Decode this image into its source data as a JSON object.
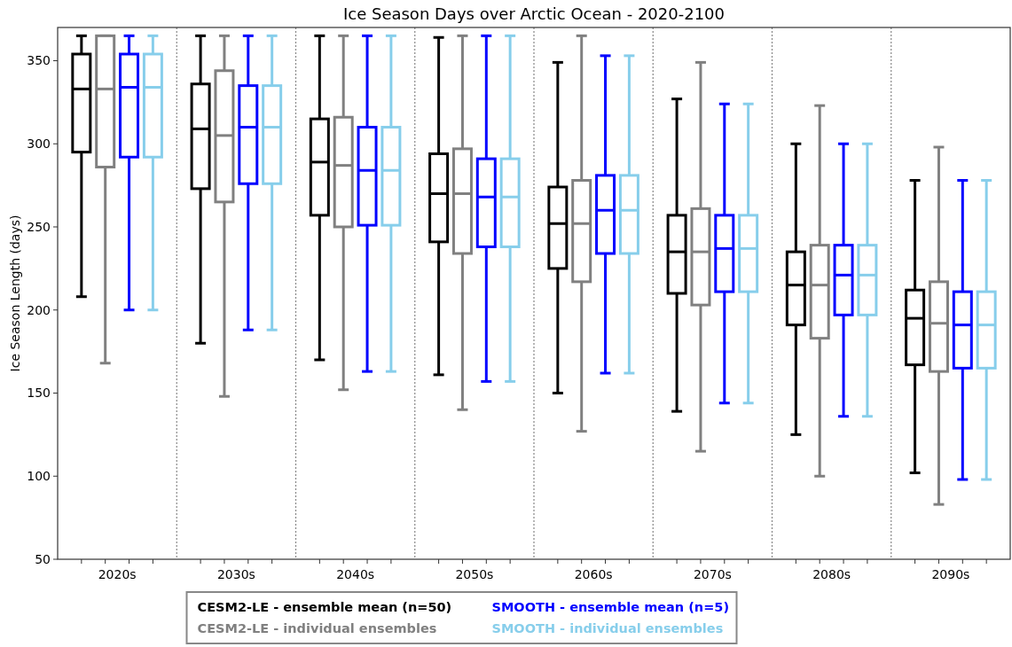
{
  "chart_data": {
    "type": "box",
    "title": "Ice Season Days over Arctic Ocean - 2020-2100",
    "ylabel": "Ice Season Length (days)",
    "categories": [
      "2020s",
      "2030s",
      "2040s",
      "2050s",
      "2060s",
      "2070s",
      "2080s",
      "2090s"
    ],
    "ylim": [
      50,
      370
    ],
    "yticks": [
      50,
      100,
      150,
      200,
      250,
      300,
      350
    ],
    "legend": "bottom",
    "grid": false,
    "series": [
      {
        "name": "CESM2-LE - ensemble mean (n=50)",
        "color": "#000000",
        "boxes": [
          {
            "low": 208,
            "q1": 295,
            "median": 333,
            "q3": 354,
            "high": 365
          },
          {
            "low": 180,
            "q1": 273,
            "median": 309,
            "q3": 336,
            "high": 365
          },
          {
            "low": 170,
            "q1": 257,
            "median": 289,
            "q3": 315,
            "high": 365
          },
          {
            "low": 161,
            "q1": 241,
            "median": 270,
            "q3": 294,
            "high": 364
          },
          {
            "low": 150,
            "q1": 225,
            "median": 252,
            "q3": 274,
            "high": 349
          },
          {
            "low": 139,
            "q1": 210,
            "median": 235,
            "q3": 257,
            "high": 327
          },
          {
            "low": 125,
            "q1": 191,
            "median": 215,
            "q3": 235,
            "high": 300
          },
          {
            "low": 102,
            "q1": 167,
            "median": 195,
            "q3": 212,
            "high": 278
          }
        ]
      },
      {
        "name": "CESM2-LE - individual ensembles",
        "color": "#808080",
        "boxes": [
          {
            "low": 168,
            "q1": 286,
            "median": 333,
            "q3": 365,
            "high": 365
          },
          {
            "low": 148,
            "q1": 265,
            "median": 305,
            "q3": 344,
            "high": 365
          },
          {
            "low": 152,
            "q1": 250,
            "median": 287,
            "q3": 316,
            "high": 365
          },
          {
            "low": 140,
            "q1": 234,
            "median": 270,
            "q3": 297,
            "high": 365
          },
          {
            "low": 127,
            "q1": 217,
            "median": 252,
            "q3": 278,
            "high": 365
          },
          {
            "low": 115,
            "q1": 203,
            "median": 235,
            "q3": 261,
            "high": 349
          },
          {
            "low": 100,
            "q1": 183,
            "median": 215,
            "q3": 239,
            "high": 323
          },
          {
            "low": 83,
            "q1": 163,
            "median": 192,
            "q3": 217,
            "high": 298
          }
        ]
      },
      {
        "name": "SMOOTH - ensemble mean (n=5)",
        "color": "#0000ff",
        "boxes": [
          {
            "low": 200,
            "q1": 292,
            "median": 334,
            "q3": 354,
            "high": 365
          },
          {
            "low": 188,
            "q1": 276,
            "median": 310,
            "q3": 335,
            "high": 365
          },
          {
            "low": 163,
            "q1": 251,
            "median": 284,
            "q3": 310,
            "high": 365
          },
          {
            "low": 157,
            "q1": 238,
            "median": 268,
            "q3": 291,
            "high": 365
          },
          {
            "low": 162,
            "q1": 234,
            "median": 260,
            "q3": 281,
            "high": 353
          },
          {
            "low": 144,
            "q1": 211,
            "median": 237,
            "q3": 257,
            "high": 324
          },
          {
            "low": 136,
            "q1": 197,
            "median": 221,
            "q3": 239,
            "high": 300
          },
          {
            "low": 98,
            "q1": 165,
            "median": 191,
            "q3": 211,
            "high": 278
          }
        ]
      },
      {
        "name": "SMOOTH - individual ensembles",
        "color": "#87ceeb",
        "boxes": [
          {
            "low": 200,
            "q1": 292,
            "median": 334,
            "q3": 354,
            "high": 365
          },
          {
            "low": 188,
            "q1": 276,
            "median": 310,
            "q3": 335,
            "high": 365
          },
          {
            "low": 163,
            "q1": 251,
            "median": 284,
            "q3": 310,
            "high": 365
          },
          {
            "low": 157,
            "q1": 238,
            "median": 268,
            "q3": 291,
            "high": 365
          },
          {
            "low": 162,
            "q1": 234,
            "median": 260,
            "q3": 281,
            "high": 353
          },
          {
            "low": 144,
            "q1": 211,
            "median": 237,
            "q3": 257,
            "high": 324
          },
          {
            "low": 136,
            "q1": 197,
            "median": 221,
            "q3": 239,
            "high": 300
          },
          {
            "low": 98,
            "q1": 165,
            "median": 191,
            "q3": 211,
            "high": 278
          }
        ]
      }
    ]
  }
}
